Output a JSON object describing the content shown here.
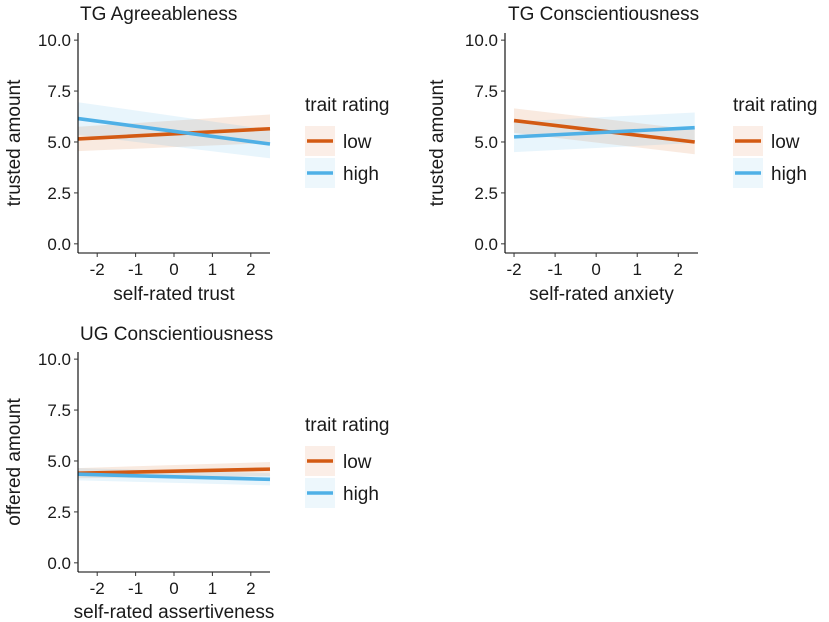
{
  "colors": {
    "low": "#D35A13",
    "high": "#4FB0E6"
  },
  "chart_data": [
    {
      "type": "line",
      "title": "TG Agreeableness",
      "xlabel": "self-rated trust",
      "ylabel": "trusted amount",
      "xlim": [
        -2.5,
        2.5
      ],
      "ylim": [
        0,
        10
      ],
      "xticks": [
        "-2",
        "-1",
        "0",
        "1",
        "2"
      ],
      "yticks": [
        "0.0",
        "2.5",
        "5.0",
        "7.5",
        "10.0"
      ],
      "legend": {
        "title": "trait rating",
        "items": [
          "low",
          "high"
        ]
      },
      "series": [
        {
          "name": "low",
          "x": [
            -2.5,
            2.5
          ],
          "y": [
            5.15,
            5.65
          ],
          "ci_low": [
            4.55,
            4.95
          ],
          "ci_high": [
            5.75,
            6.35
          ]
        },
        {
          "name": "high",
          "x": [
            -2.5,
            2.5
          ],
          "y": [
            6.15,
            4.9
          ],
          "ci_low": [
            5.35,
            4.2
          ],
          "ci_high": [
            6.95,
            5.6
          ]
        }
      ]
    },
    {
      "type": "line",
      "title": "TG Conscientiousness",
      "xlabel": "self-rated anxiety",
      "ylabel": "trusted amount",
      "xlim": [
        -2.2,
        2.4
      ],
      "ylim": [
        0,
        10
      ],
      "xticks": [
        "-2",
        "-1",
        "0",
        "1",
        "2"
      ],
      "yticks": [
        "0.0",
        "2.5",
        "5.0",
        "7.5",
        "10.0"
      ],
      "legend": {
        "title": "trait rating",
        "items": [
          "low",
          "high"
        ]
      },
      "series": [
        {
          "name": "low",
          "x": [
            -2.0,
            2.4
          ],
          "y": [
            6.05,
            5.0
          ],
          "ci_low": [
            5.45,
            4.4
          ],
          "ci_high": [
            6.65,
            5.6
          ]
        },
        {
          "name": "high",
          "x": [
            -2.0,
            2.4
          ],
          "y": [
            5.25,
            5.7
          ],
          "ci_low": [
            4.5,
            4.95
          ],
          "ci_high": [
            6.0,
            6.45
          ]
        }
      ]
    },
    {
      "type": "line",
      "title": "UG Conscientiousness",
      "xlabel": "self-rated assertiveness",
      "ylabel": "offered amount",
      "xlim": [
        -2.5,
        2.5
      ],
      "ylim": [
        0,
        10
      ],
      "xticks": [
        "-2",
        "-1",
        "0",
        "1",
        "2"
      ],
      "yticks": [
        "0.0",
        "2.5",
        "5.0",
        "7.5",
        "10.0"
      ],
      "legend": {
        "title": "trait rating",
        "items": [
          "low",
          "high"
        ]
      },
      "series": [
        {
          "name": "low",
          "x": [
            -2.5,
            2.5
          ],
          "y": [
            4.4,
            4.6
          ],
          "ci_low": [
            4.15,
            4.25
          ],
          "ci_high": [
            4.65,
            4.95
          ]
        },
        {
          "name": "high",
          "x": [
            -2.5,
            2.5
          ],
          "y": [
            4.35,
            4.1
          ],
          "ci_low": [
            4.05,
            3.8
          ],
          "ci_high": [
            4.65,
            4.4
          ]
        }
      ]
    }
  ]
}
